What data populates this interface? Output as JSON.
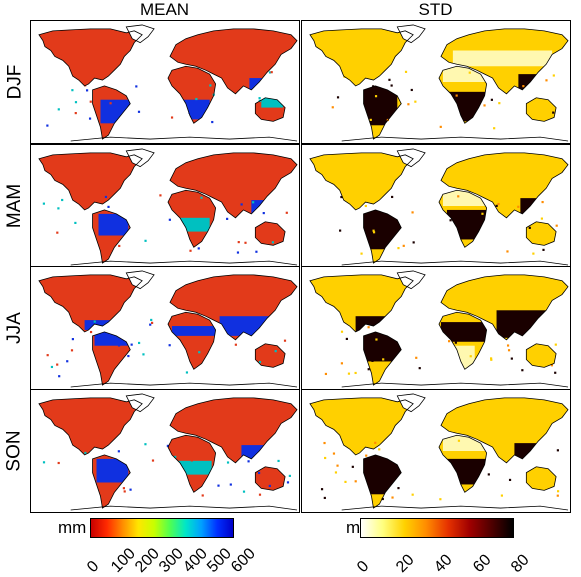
{
  "columns": [
    {
      "title": "MEAN"
    },
    {
      "title": "STD"
    }
  ],
  "seasons": [
    "DJF",
    "MAM",
    "JJA",
    "SON"
  ],
  "colorbars": [
    {
      "unit": "mm",
      "ticks": [
        "0",
        "100",
        "200",
        "300",
        "400",
        "500",
        "600"
      ],
      "gradient": [
        "#c80000",
        "#ff2a00",
        "#ff8c00",
        "#ffe600",
        "#c8ff00",
        "#50ff50",
        "#00e6c8",
        "#00a0ff",
        "#0030ff",
        "#0000c8"
      ]
    },
    {
      "unit": "mm",
      "ticks": [
        "0",
        "20",
        "40",
        "60",
        "80"
      ],
      "gradient": [
        "#ffffff",
        "#ffff80",
        "#ffd200",
        "#ff8c00",
        "#e63200",
        "#a00000",
        "#500000",
        "#000000"
      ]
    }
  ],
  "colors": {
    "mean_base": "#e23a1a",
    "mean_wet": "#1030e0",
    "mean_mid": "#00c0c0",
    "std_base": "#ffd000",
    "std_high": "#1a0000",
    "std_low": "#fff8b0",
    "coast": "#000000"
  }
}
